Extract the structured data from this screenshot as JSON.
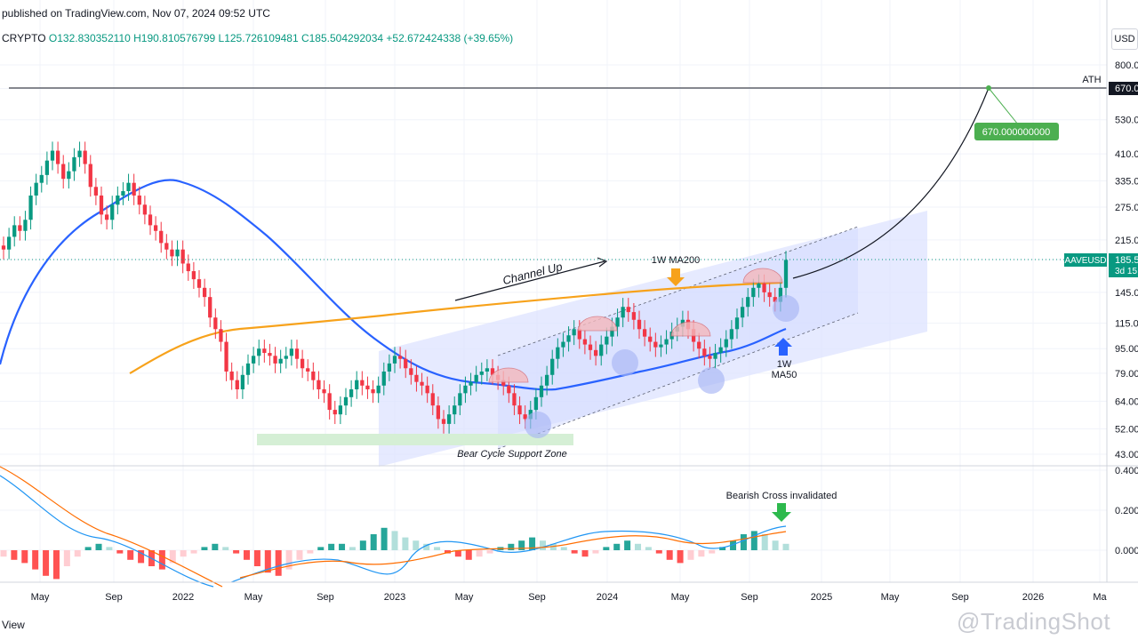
{
  "header": {
    "published": "published on TradingView.com, Nov 07, 2024 09:52 UTC",
    "symbol": "CRYPTO",
    "ohlc": "O132.830352110 H190.810576799 L125.726109481 C185.504292034 +52.672424338 (+39.65%)",
    "currency": "USD"
  },
  "footer": {
    "view_label": "View",
    "watermark": "@TradingShot"
  },
  "colors": {
    "up": "#089981",
    "down": "#f23645",
    "ma50": "#2962ff",
    "ma200": "#f7a21b",
    "channel": "#dde3ff",
    "support": "#d5efd5",
    "ath_label": "#4caf50",
    "macd": "#2196f3",
    "signal": "#ff6d00"
  },
  "chart_data": [
    {
      "type": "candlestick",
      "scale": "log",
      "ylim": [
        40,
        900
      ],
      "x_ticks": [
        "May",
        "Sep",
        "2022",
        "May",
        "Sep",
        "2023",
        "May",
        "Sep",
        "2024",
        "May",
        "Sep",
        "2025",
        "May",
        "Sep",
        "2026",
        "Ma"
      ],
      "y_ticks": [
        "800.0",
        "670.0",
        "530.0",
        "410.0",
        "335.0",
        "275.0",
        "215.0",
        "185.5",
        "145.0",
        "115.0",
        "95.00",
        "79.00",
        "64.00",
        "52.00",
        "43.00"
      ],
      "last_price_label": "AAVEUSD",
      "last_price": "185.5",
      "countdown": "3d 15",
      "ath_value": "670.0",
      "target_label": "670.000000000",
      "series": [
        {
          "name": "1W MA200"
        },
        {
          "name": "1W MA50"
        }
      ],
      "annotations": {
        "ath": "ATH",
        "channel": "Channel Up",
        "ma200": "1W MA200",
        "ma50_line1": "1W",
        "ma50_line2": "MA50",
        "support": "Bear Cycle Support Zone"
      }
    },
    {
      "type": "macd",
      "y_ticks": [
        "0.400",
        "0.200",
        "0.000"
      ],
      "annotation": "Bearish Cross invalidated"
    }
  ]
}
